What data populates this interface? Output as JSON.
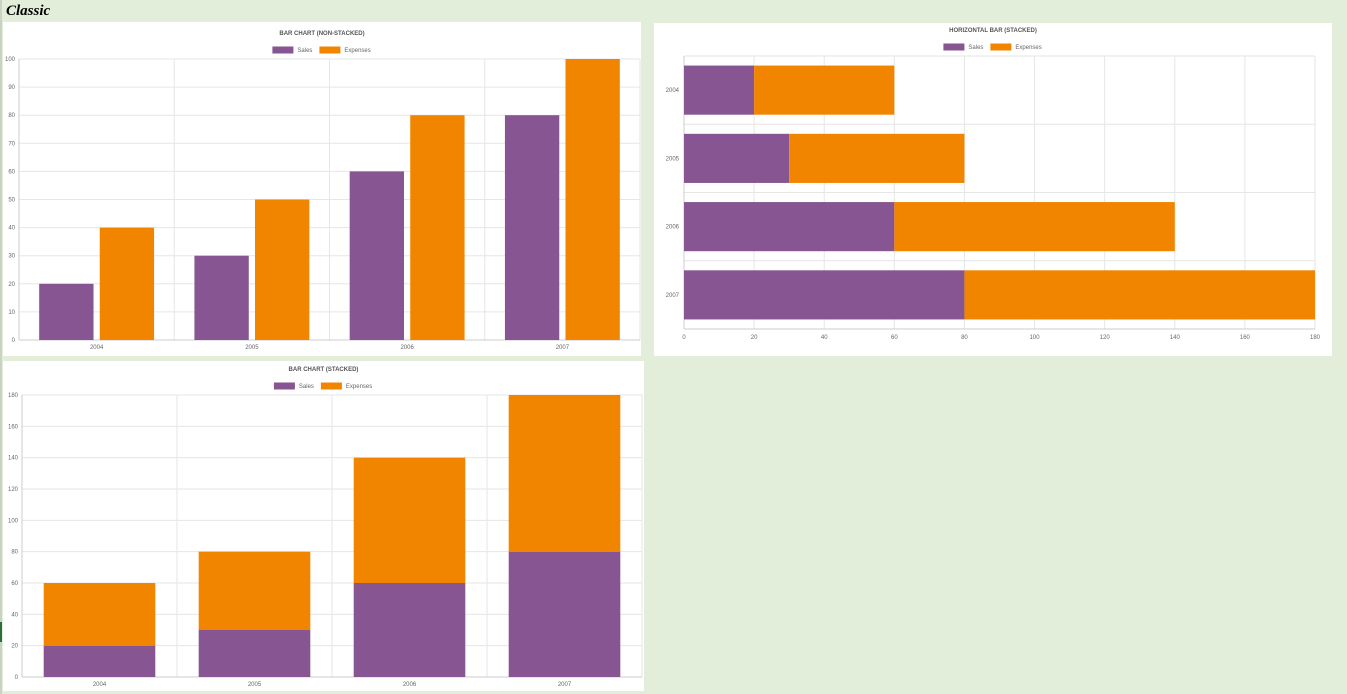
{
  "sheet": {
    "title": "Classic"
  },
  "colors": {
    "sales": "#875592",
    "expenses": "#f28500",
    "grid": "#e6e6e6",
    "axis": "#cccccc",
    "text": "#666666",
    "title": "#555555"
  },
  "chart_data": [
    {
      "type": "bar",
      "orientation": "vertical",
      "stacked": false,
      "title": "BAR CHART (NON-STACKED)",
      "categories": [
        "2004",
        "2005",
        "2006",
        "2007"
      ],
      "series": [
        {
          "name": "Sales",
          "values": [
            20,
            30,
            60,
            80
          ]
        },
        {
          "name": "Expenses",
          "values": [
            40,
            50,
            80,
            100
          ]
        }
      ],
      "ylim": [
        0,
        100
      ],
      "ticks": [
        0,
        10,
        20,
        30,
        40,
        50,
        60,
        70,
        80,
        90,
        100
      ],
      "grid": true,
      "legend": "top-center"
    },
    {
      "type": "bar",
      "orientation": "horizontal",
      "stacked": true,
      "title": "HORIZONTAL BAR (STACKED)",
      "categories": [
        "2004",
        "2005",
        "2006",
        "2007"
      ],
      "series": [
        {
          "name": "Sales",
          "values": [
            20,
            30,
            60,
            80
          ]
        },
        {
          "name": "Expenses",
          "values": [
            40,
            50,
            80,
            100
          ]
        }
      ],
      "xlim": [
        0,
        180
      ],
      "ticks": [
        0,
        20,
        40,
        60,
        80,
        100,
        120,
        140,
        160,
        180
      ],
      "grid": true,
      "legend": "top-center"
    },
    {
      "type": "bar",
      "orientation": "vertical",
      "stacked": true,
      "title": "BAR CHART (STACKED)",
      "categories": [
        "2004",
        "2005",
        "2006",
        "2007"
      ],
      "series": [
        {
          "name": "Sales",
          "values": [
            20,
            30,
            60,
            80
          ]
        },
        {
          "name": "Expenses",
          "values": [
            40,
            50,
            80,
            100
          ]
        }
      ],
      "ylim": [
        0,
        180
      ],
      "ticks": [
        0,
        20,
        40,
        60,
        80,
        100,
        120,
        140,
        160,
        180
      ],
      "grid": true,
      "legend": "top-center"
    }
  ]
}
